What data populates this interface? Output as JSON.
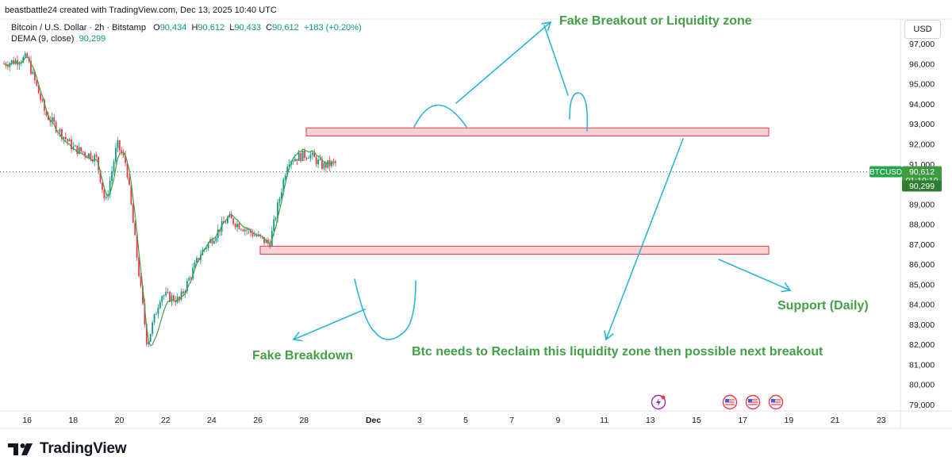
{
  "header": {
    "byline": "beastbattle24 created with TradingView.com, Dec 13, 2025 10:40 UTC",
    "symbol_line": "Bitcoin / U.S. Dollar · 2h · Bitstamp",
    "ohlc": {
      "o_label": "O",
      "o": "90,434",
      "h_label": "H",
      "h": "90,612",
      "l_label": "L",
      "l": "90,433",
      "c_label": "C",
      "c": "90,612",
      "change": "+183 (+0.20%)"
    },
    "indicator_name": "DEMA (9, close)",
    "indicator_value": "90,299"
  },
  "currency_button": "USD",
  "brand": {
    "name": "TradingView",
    "icon": "tradingview-logo-icon"
  },
  "colors": {
    "up": "#089981",
    "down": "#f23645",
    "dema": "#43a047",
    "annotation_line": "#29b6d6",
    "annotation_text": "#43a047",
    "zone_fill": "#f8c8cc",
    "zone_border": "#e53945",
    "last_price_label": "#3d9b40",
    "symbol_label": "#26a64a"
  },
  "price_scale": {
    "labels": [
      "97,000",
      "96,000",
      "95,000",
      "94,000",
      "93,000",
      "92,000",
      "91,000",
      "90,000",
      "89,000",
      "88,000",
      "87,000",
      "86,000",
      "85,000",
      "84,000",
      "83,000",
      "82,000",
      "81,000",
      "80,000",
      "79,000"
    ],
    "symbol_label": "BTCUSD",
    "last_price": "90,612",
    "countdown": "01:19:10",
    "dema_label": "90,299"
  },
  "time_scale": {
    "labels": [
      "16",
      "18",
      "20",
      "22",
      "24",
      "26",
      "28",
      "Dec",
      "3",
      "5",
      "7",
      "9",
      "11",
      "13",
      "15",
      "17",
      "19",
      "21",
      "23"
    ]
  },
  "event_icons": [
    "lightning-event-icon",
    "us-flag-event-icon",
    "us-flag-event-icon",
    "us-flag-event-icon"
  ],
  "annotations": {
    "fake_breakout": "Fake Breakout or Liquidity zone",
    "support": "Support (Daily)",
    "fake_breakdown": "Fake Breakdown",
    "reclaim": "Btc needs to Reclaim this liquidity zone then possible next breakout"
  },
  "chart_data": {
    "type": "candlestick",
    "title": "Bitcoin / U.S. Dollar · 2h · Bitstamp",
    "x": [
      "Nov 15",
      "Nov 16",
      "Nov 17",
      "Nov 18",
      "Nov 19",
      "Nov 20",
      "Nov 21",
      "Nov 22",
      "Nov 23",
      "Nov 24",
      "Nov 25",
      "Nov 26",
      "Nov 27",
      "Nov 28",
      "Nov 29",
      "Nov 30",
      "Dec 1",
      "Dec 2",
      "Dec 3",
      "Dec 4",
      "Dec 5",
      "Dec 6",
      "Dec 7",
      "Dec 8",
      "Dec 9",
      "Dec 10",
      "Dec 11",
      "Dec 12",
      "Dec 13"
    ],
    "price_path": [
      [
        "Nov 15",
        96000
      ],
      [
        "Nov 16",
        96300
      ],
      [
        "Nov 16.8",
        93500
      ],
      [
        "Nov 18",
        91800
      ],
      [
        "Nov 19",
        91300
      ],
      [
        "Nov 19.4",
        89000
      ],
      [
        "Nov 19.9",
        92000
      ],
      [
        "Nov 20.3",
        91000
      ],
      [
        "Nov 20.8",
        86000
      ],
      [
        "Nov 21.2",
        82000
      ],
      [
        "Nov 21.8",
        84500
      ],
      [
        "Nov 22.6",
        84200
      ],
      [
        "Nov 23.5",
        86500
      ],
      [
        "Nov 24.7",
        88300
      ],
      [
        "Nov 25.4",
        87800
      ],
      [
        "Nov 26.5",
        87000
      ],
      [
        "Nov 27.3",
        91200
      ],
      [
        "Nov 28.2",
        91500
      ],
      [
        "Nov 28.8",
        90900
      ],
      [
        "Nov 30.3",
        91300
      ],
      [
        "Nov 30.6",
        87000
      ],
      [
        "Dec 1",
        84500
      ],
      [
        "Dec 1.6",
        86700
      ],
      [
        "Dec 2.6",
        91800
      ],
      [
        "Dec 3.2",
        93100
      ],
      [
        "Dec 4",
        93400
      ],
      [
        "Dec 4.6",
        92200
      ],
      [
        "Dec 5.5",
        90500
      ],
      [
        "Dec 5.9",
        89300
      ],
      [
        "Dec 6.6",
        89600
      ],
      [
        "Dec 7.5",
        89100
      ],
      [
        "Dec 8",
        91200
      ],
      [
        "Dec 8.5",
        91900
      ],
      [
        "Dec 9",
        90200
      ],
      [
        "Dec 9.5",
        91300
      ],
      [
        "Dec 9.8",
        93500
      ],
      [
        "Dec 10.3",
        92600
      ],
      [
        "Dec 10.8",
        92700
      ],
      [
        "Dec 11.3",
        89900
      ],
      [
        "Dec 11.6",
        90200
      ],
      [
        "Dec 11.9",
        92800
      ],
      [
        "Dec 12.3",
        92400
      ],
      [
        "Dec 12.7",
        90200
      ],
      [
        "Dec 13.4",
        90612
      ]
    ],
    "last_close": 90612,
    "dema_last": 90299,
    "zones": [
      {
        "name": "Liquidity zone",
        "from": 92400,
        "to": 92800
      },
      {
        "name": "Support (Daily)",
        "from": 86500,
        "to": 86900
      }
    ],
    "ylim": [
      78800,
      97600
    ],
    "ylabel": "USD",
    "xlabel": ""
  }
}
